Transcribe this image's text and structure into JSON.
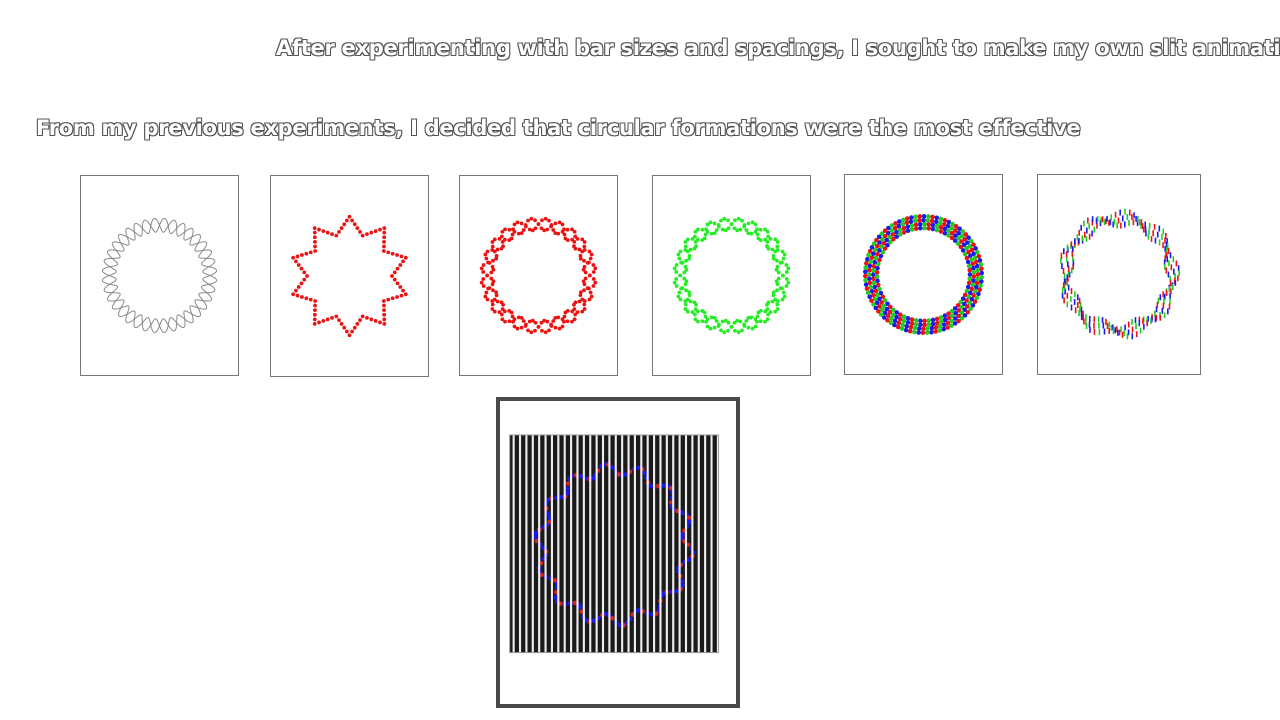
{
  "slide": {
    "heading": "After experimenting with bar sizes and spacings, I sought to make my own slit animation",
    "subheading": "From my previous experiments, I decided that circular formations were the most effective"
  },
  "panels": [
    {
      "style": "wavy-line",
      "colors": [
        "#888888"
      ]
    },
    {
      "style": "star-dots",
      "colors": [
        "#ee1111"
      ]
    },
    {
      "style": "double-ring-dots",
      "colors": [
        "#ee1111"
      ]
    },
    {
      "style": "double-ring-dots",
      "colors": [
        "#22ee22"
      ]
    },
    {
      "style": "multicolor-band",
      "colors": [
        "#1a1aee",
        "#22cc22",
        "#ee1111"
      ]
    },
    {
      "style": "multicolor-dashes",
      "colors": [
        "#1a1aee",
        "#22cc22",
        "#ee1111"
      ]
    }
  ],
  "slit_animation": {
    "background": "#1a1a1a",
    "slit_color": "#ffffff",
    "colors": [
      "#1a1aee",
      "#cc2222"
    ]
  }
}
